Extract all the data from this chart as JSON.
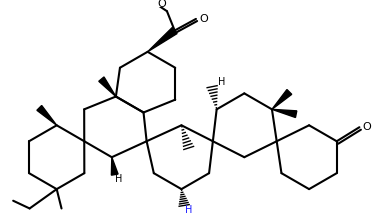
{
  "bg_color": "#ffffff",
  "line_color": "#000000",
  "lw": 1.5,
  "bold_lw": 4.0,
  "figsize": [
    3.89,
    2.22
  ],
  "dpi": 100,
  "xlim": [
    0,
    389
  ],
  "ylim": [
    0,
    222
  ]
}
